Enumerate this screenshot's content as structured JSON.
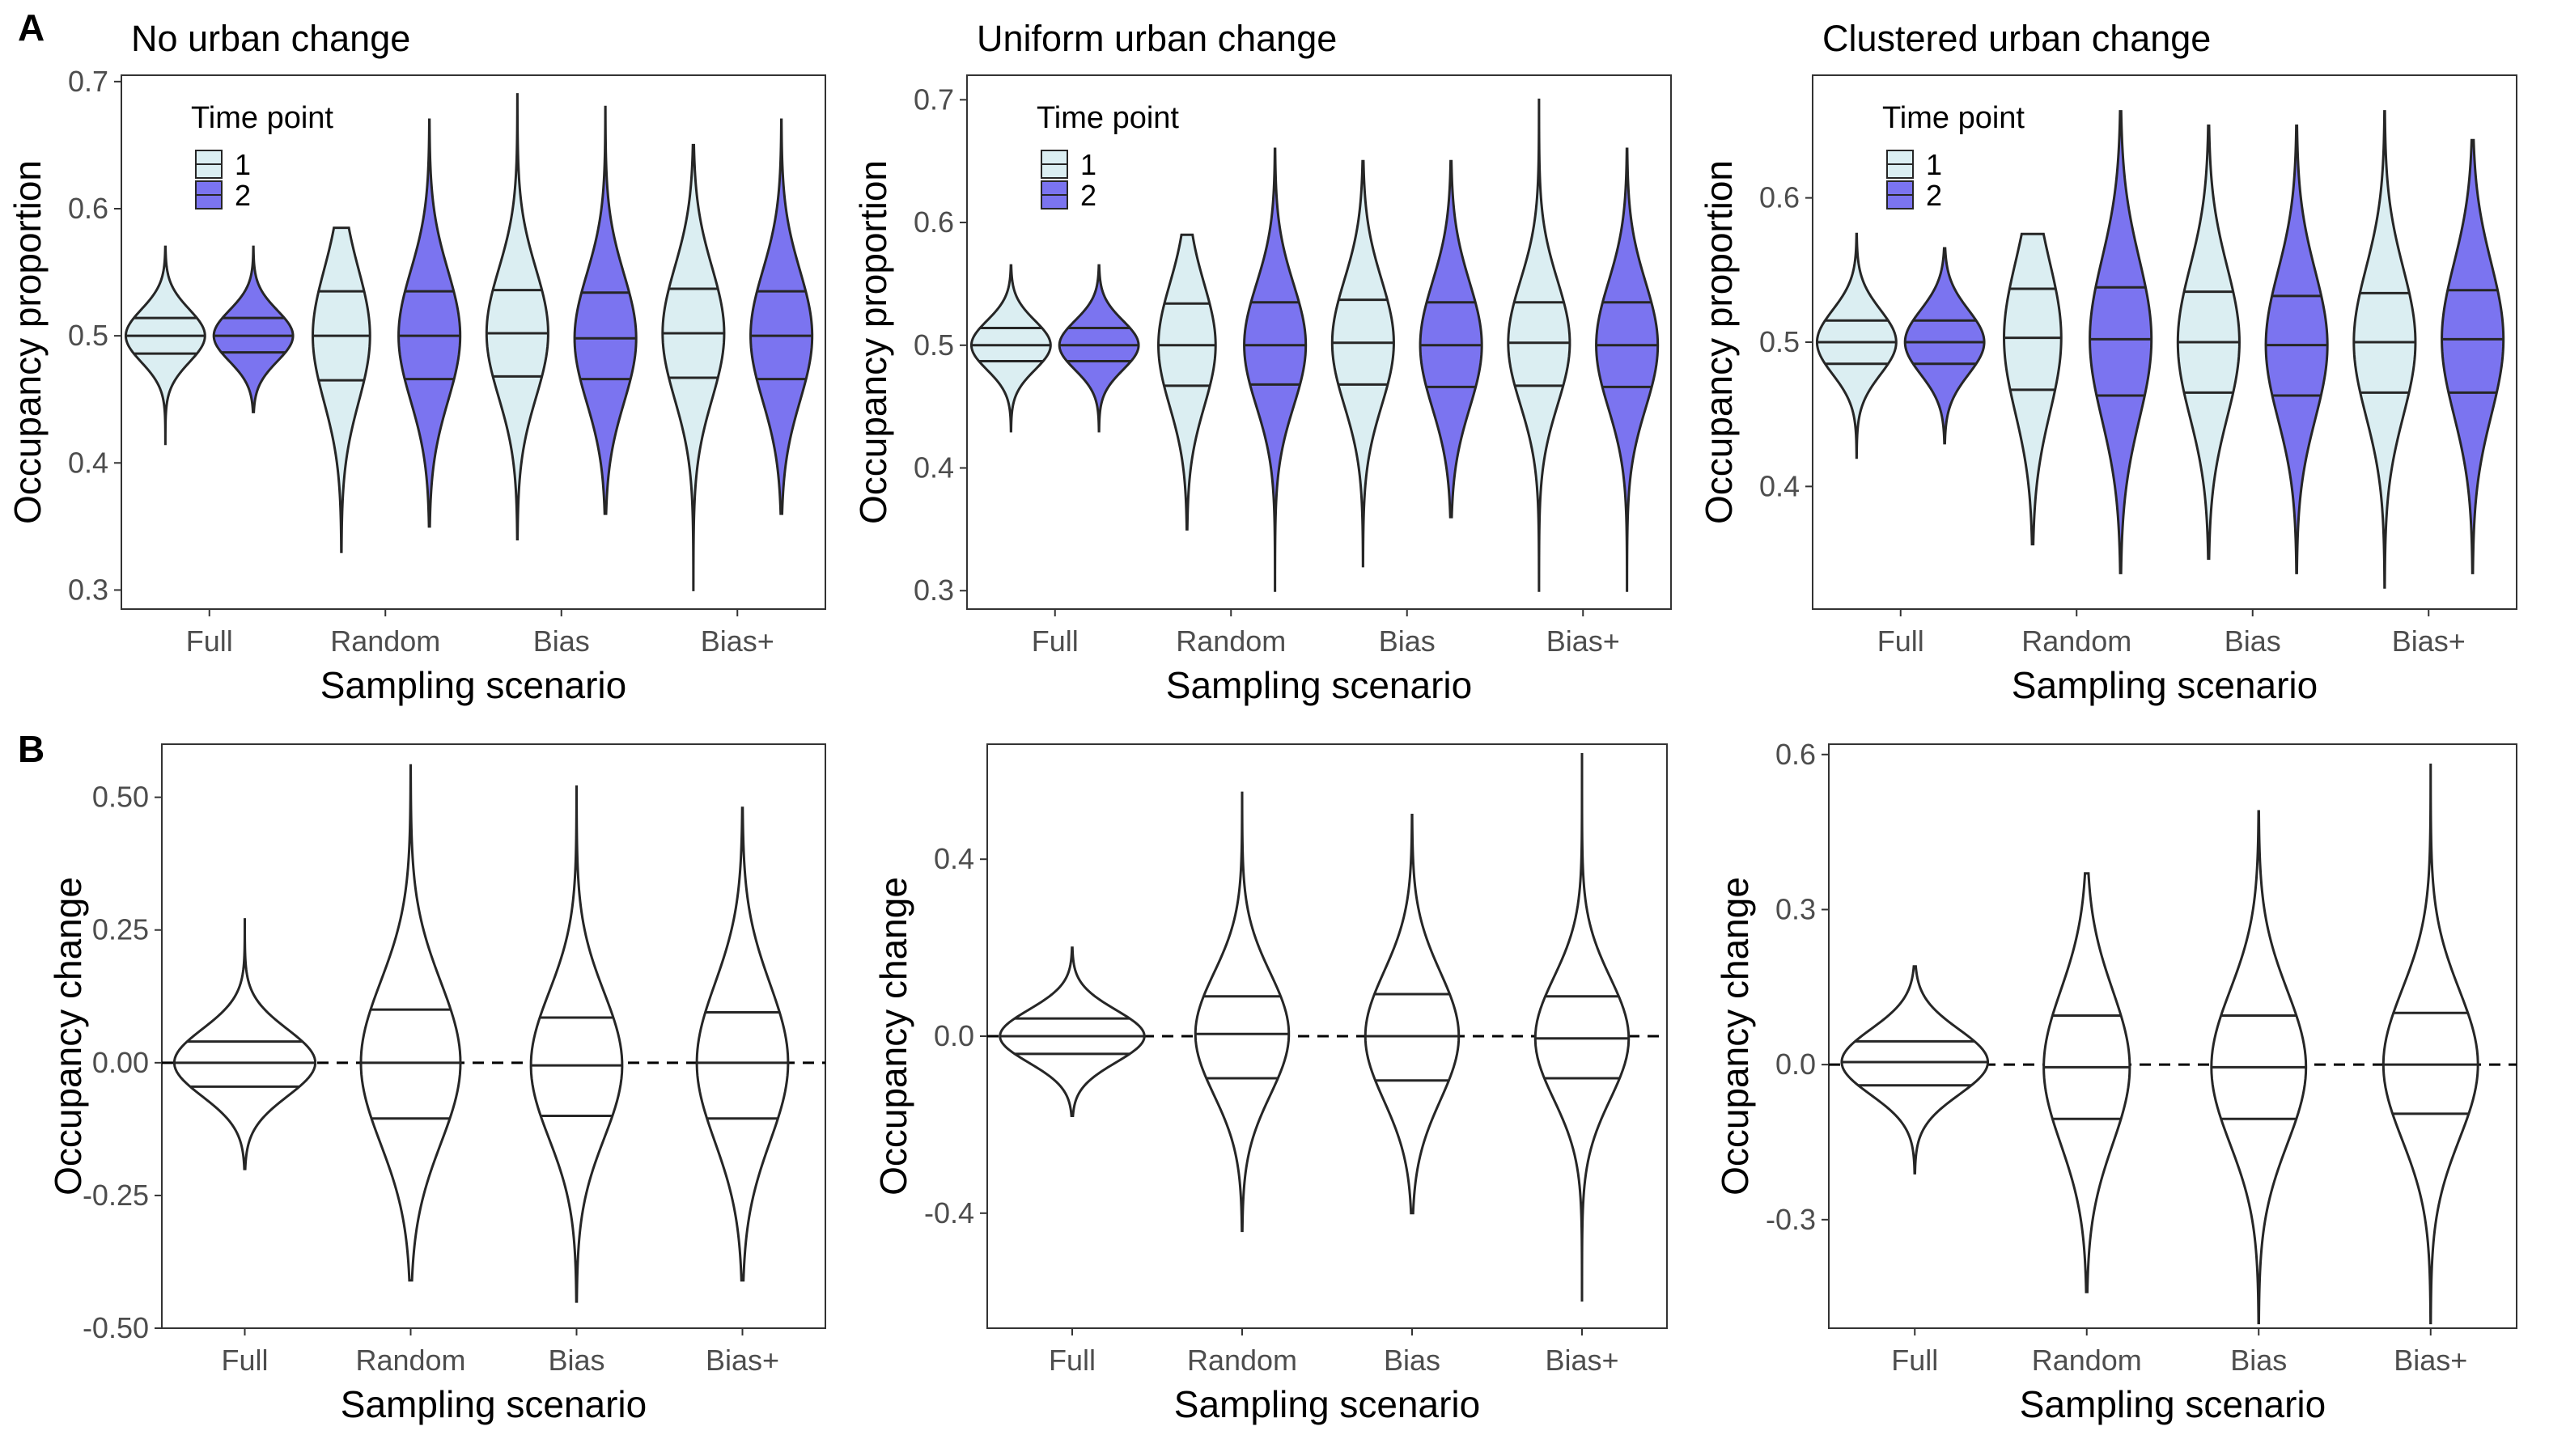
{
  "panel_labels": [
    "A",
    "B"
  ],
  "legend": {
    "title": "Time point",
    "items": [
      {
        "label": "1",
        "color": "#dbeef2"
      },
      {
        "label": "2",
        "color": "#7b74f0"
      }
    ]
  },
  "chart_data": [
    {
      "type": "violin",
      "row": "A",
      "title": "No urban change",
      "xlabel": "Sampling scenario",
      "ylabel": "Occupancy proportion",
      "categories": [
        "Full",
        "Random",
        "Bias",
        "Bias+"
      ],
      "ylim": [
        0.285,
        0.705
      ],
      "yticks": [
        {
          "v": 0.3,
          "label": "0.3"
        },
        {
          "v": 0.4,
          "label": "0.4"
        },
        {
          "v": 0.5,
          "label": "0.5"
        },
        {
          "v": 0.6,
          "label": "0.6"
        },
        {
          "v": 0.7,
          "label": "0.7"
        }
      ],
      "grid": false,
      "legend": "top-left",
      "series": [
        {
          "name": "1",
          "color": "#dbeef2",
          "violins": [
            {
              "min": 0.415,
              "max": 0.57,
              "q1": 0.486,
              "median": 0.5,
              "q3": 0.514,
              "width": 0.9
            },
            {
              "min": 0.33,
              "max": 0.585,
              "q1": 0.465,
              "median": 0.5,
              "q3": 0.535,
              "width": 0.65
            },
            {
              "min": 0.34,
              "max": 0.69,
              "q1": 0.468,
              "median": 0.502,
              "q3": 0.536,
              "width": 0.7
            },
            {
              "min": 0.3,
              "max": 0.65,
              "q1": 0.467,
              "median": 0.502,
              "q3": 0.537,
              "width": 0.7
            }
          ]
        },
        {
          "name": "2",
          "color": "#7b74f0",
          "violins": [
            {
              "min": 0.44,
              "max": 0.57,
              "q1": 0.487,
              "median": 0.5,
              "q3": 0.514,
              "width": 0.9
            },
            {
              "min": 0.35,
              "max": 0.67,
              "q1": 0.466,
              "median": 0.5,
              "q3": 0.535,
              "width": 0.7
            },
            {
              "min": 0.36,
              "max": 0.68,
              "q1": 0.466,
              "median": 0.498,
              "q3": 0.534,
              "width": 0.7
            },
            {
              "min": 0.36,
              "max": 0.67,
              "q1": 0.466,
              "median": 0.5,
              "q3": 0.535,
              "width": 0.7
            }
          ]
        }
      ]
    },
    {
      "type": "violin",
      "row": "A",
      "title": "Uniform urban change",
      "xlabel": "Sampling scenario",
      "ylabel": "Occupancy proportion",
      "categories": [
        "Full",
        "Random",
        "Bias",
        "Bias+"
      ],
      "ylim": [
        0.285,
        0.72
      ],
      "yticks": [
        {
          "v": 0.3,
          "label": "0.3"
        },
        {
          "v": 0.4,
          "label": "0.4"
        },
        {
          "v": 0.5,
          "label": "0.5"
        },
        {
          "v": 0.6,
          "label": "0.6"
        },
        {
          "v": 0.7,
          "label": "0.7"
        }
      ],
      "grid": false,
      "legend": "top-left",
      "series": [
        {
          "name": "1",
          "color": "#dbeef2",
          "violins": [
            {
              "min": 0.43,
              "max": 0.565,
              "q1": 0.487,
              "median": 0.5,
              "q3": 0.514,
              "width": 0.9
            },
            {
              "min": 0.35,
              "max": 0.59,
              "q1": 0.467,
              "median": 0.5,
              "q3": 0.534,
              "width": 0.65
            },
            {
              "min": 0.32,
              "max": 0.65,
              "q1": 0.468,
              "median": 0.502,
              "q3": 0.537,
              "width": 0.7
            },
            {
              "min": 0.3,
              "max": 0.7,
              "q1": 0.467,
              "median": 0.502,
              "q3": 0.535,
              "width": 0.7
            }
          ]
        },
        {
          "name": "2",
          "color": "#7b74f0",
          "violins": [
            {
              "min": 0.43,
              "max": 0.565,
              "q1": 0.487,
              "median": 0.5,
              "q3": 0.514,
              "width": 0.9
            },
            {
              "min": 0.3,
              "max": 0.66,
              "q1": 0.468,
              "median": 0.5,
              "q3": 0.535,
              "width": 0.7
            },
            {
              "min": 0.36,
              "max": 0.65,
              "q1": 0.466,
              "median": 0.5,
              "q3": 0.535,
              "width": 0.7
            },
            {
              "min": 0.3,
              "max": 0.66,
              "q1": 0.466,
              "median": 0.5,
              "q3": 0.535,
              "width": 0.7
            }
          ]
        }
      ]
    },
    {
      "type": "violin",
      "row": "A",
      "title": "Clustered urban change",
      "xlabel": "Sampling scenario",
      "ylabel": "Occupancy proportion",
      "categories": [
        "Full",
        "Random",
        "Bias",
        "Bias+"
      ],
      "ylim": [
        0.315,
        0.685
      ],
      "yticks": [
        {
          "v": 0.4,
          "label": "0.4"
        },
        {
          "v": 0.5,
          "label": "0.5"
        },
        {
          "v": 0.6,
          "label": "0.6"
        }
      ],
      "grid": false,
      "legend": "top-left",
      "series": [
        {
          "name": "1",
          "color": "#dbeef2",
          "violins": [
            {
              "min": 0.42,
              "max": 0.575,
              "q1": 0.485,
              "median": 0.5,
              "q3": 0.515,
              "width": 0.9
            },
            {
              "min": 0.36,
              "max": 0.575,
              "q1": 0.467,
              "median": 0.503,
              "q3": 0.537,
              "width": 0.65
            },
            {
              "min": 0.35,
              "max": 0.65,
              "q1": 0.465,
              "median": 0.5,
              "q3": 0.535,
              "width": 0.7
            },
            {
              "min": 0.33,
              "max": 0.66,
              "q1": 0.465,
              "median": 0.5,
              "q3": 0.534,
              "width": 0.7
            }
          ]
        },
        {
          "name": "2",
          "color": "#7b74f0",
          "violins": [
            {
              "min": 0.43,
              "max": 0.565,
              "q1": 0.485,
              "median": 0.5,
              "q3": 0.515,
              "width": 0.9
            },
            {
              "min": 0.34,
              "max": 0.66,
              "q1": 0.463,
              "median": 0.502,
              "q3": 0.538,
              "width": 0.7
            },
            {
              "min": 0.34,
              "max": 0.65,
              "q1": 0.463,
              "median": 0.498,
              "q3": 0.532,
              "width": 0.7
            },
            {
              "min": 0.34,
              "max": 0.64,
              "q1": 0.465,
              "median": 0.502,
              "q3": 0.536,
              "width": 0.7
            }
          ]
        }
      ]
    },
    {
      "type": "violin",
      "row": "B",
      "title": "",
      "xlabel": "Sampling scenario",
      "ylabel": "Occupancy change",
      "categories": [
        "Full",
        "Random",
        "Bias",
        "Bias+"
      ],
      "ylim": [
        -0.5,
        0.6
      ],
      "yticks": [
        {
          "v": -0.5,
          "label": "-0.50"
        },
        {
          "v": -0.25,
          "label": "-0.25"
        },
        {
          "v": 0,
          "label": "0.00"
        },
        {
          "v": 0.25,
          "label": "0.25"
        },
        {
          "v": 0.5,
          "label": "0.50"
        }
      ],
      "reference_line": 0,
      "grid": false,
      "series": [
        {
          "name": "",
          "color": "#ffffff",
          "violins": [
            {
              "min": -0.2,
              "max": 0.27,
              "q1": -0.045,
              "median": 0.0,
              "q3": 0.04,
              "width": 0.85
            },
            {
              "min": -0.41,
              "max": 0.56,
              "q1": -0.105,
              "median": 0.0,
              "q3": 0.1,
              "width": 0.6
            },
            {
              "min": -0.45,
              "max": 0.52,
              "q1": -0.1,
              "median": -0.005,
              "q3": 0.085,
              "width": 0.55
            },
            {
              "min": -0.41,
              "max": 0.48,
              "q1": -0.105,
              "median": 0.0,
              "q3": 0.095,
              "width": 0.55
            }
          ]
        }
      ]
    },
    {
      "type": "violin",
      "row": "B",
      "title": "",
      "xlabel": "Sampling scenario",
      "ylabel": "Occupancy change",
      "categories": [
        "Full",
        "Random",
        "Bias",
        "Bias+"
      ],
      "ylim": [
        -0.66,
        0.66
      ],
      "yticks": [
        {
          "v": -0.4,
          "label": "-0.4"
        },
        {
          "v": 0,
          "label": "0.0"
        },
        {
          "v": 0.4,
          "label": "0.4"
        }
      ],
      "reference_line": 0,
      "grid": false,
      "series": [
        {
          "name": "",
          "color": "#ffffff",
          "violins": [
            {
              "min": -0.18,
              "max": 0.2,
              "q1": -0.04,
              "median": 0.0,
              "q3": 0.04,
              "width": 0.85
            },
            {
              "min": -0.44,
              "max": 0.55,
              "q1": -0.095,
              "median": 0.005,
              "q3": 0.09,
              "width": 0.55
            },
            {
              "min": -0.4,
              "max": 0.5,
              "q1": -0.1,
              "median": 0.0,
              "q3": 0.095,
              "width": 0.55
            },
            {
              "min": -0.6,
              "max": 0.64,
              "q1": -0.095,
              "median": -0.005,
              "q3": 0.09,
              "width": 0.55
            }
          ]
        }
      ]
    },
    {
      "type": "violin",
      "row": "B",
      "title": "",
      "xlabel": "Sampling scenario",
      "ylabel": "Occupancy change",
      "categories": [
        "Full",
        "Random",
        "Bias",
        "Bias+"
      ],
      "ylim": [
        -0.51,
        0.62
      ],
      "yticks": [
        {
          "v": -0.3,
          "label": "-0.3"
        },
        {
          "v": 0,
          "label": "0.0"
        },
        {
          "v": 0.3,
          "label": "0.3"
        },
        {
          "v": 0.6,
          "label": "0.6"
        }
      ],
      "reference_line": 0,
      "grid": false,
      "series": [
        {
          "name": "",
          "color": "#ffffff",
          "violins": [
            {
              "min": -0.21,
              "max": 0.19,
              "q1": -0.04,
              "median": 0.005,
              "q3": 0.045,
              "width": 0.85
            },
            {
              "min": -0.44,
              "max": 0.37,
              "q1": -0.105,
              "median": -0.005,
              "q3": 0.095,
              "width": 0.5
            },
            {
              "min": -0.5,
              "max": 0.49,
              "q1": -0.105,
              "median": -0.005,
              "q3": 0.095,
              "width": 0.55
            },
            {
              "min": -0.5,
              "max": 0.58,
              "q1": -0.095,
              "median": 0.0,
              "q3": 0.1,
              "width": 0.55
            }
          ]
        }
      ]
    }
  ]
}
